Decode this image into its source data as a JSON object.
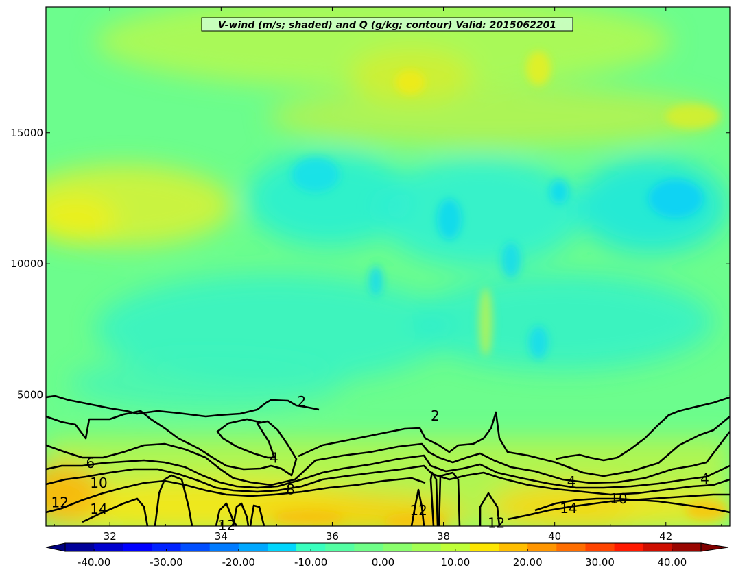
{
  "chart_data": {
    "type": "heatmap",
    "title": "V-wind (m/s; shaded) and Q (g/kg; contour) Valid: 2015062201",
    "x_ticks": [
      32,
      34,
      36,
      38,
      40,
      42
    ],
    "x_range": [
      30.85,
      43.15
    ],
    "y_ticks": [
      5000,
      10000,
      15000
    ],
    "y_range": [
      0,
      19800
    ],
    "shaded_variable": "V-wind (m/s)",
    "contour_variable": "Q (g/kg)",
    "colorbar": {
      "ticks": [
        "-40.00",
        "-30.00",
        "-20.00",
        "-10.00",
        "0.00",
        "10.00",
        "20.00",
        "30.00",
        "40.00"
      ],
      "range": [
        -44,
        44
      ],
      "levels": 22,
      "extend": "both"
    },
    "contour_labels": [
      {
        "text": "2",
        "x": 35.45,
        "y": 4750
      },
      {
        "text": "2",
        "x": 37.85,
        "y": 4200
      },
      {
        "text": "4",
        "x": 34.95,
        "y": 2600
      },
      {
        "text": "4",
        "x": 40.3,
        "y": 1700
      },
      {
        "text": "4",
        "x": 42.7,
        "y": 1800
      },
      {
        "text": "6",
        "x": 31.65,
        "y": 2400
      },
      {
        "text": "8",
        "x": 35.25,
        "y": 1400
      },
      {
        "text": "10",
        "x": 31.8,
        "y": 1650
      },
      {
        "text": "10",
        "x": 41.15,
        "y": 1050
      },
      {
        "text": "12",
        "x": 31.1,
        "y": 900
      },
      {
        "text": "12",
        "x": 34.1,
        "y": 20
      },
      {
        "text": "12",
        "x": 37.55,
        "y": 600
      },
      {
        "text": "12",
        "x": 38.95,
        "y": 120
      },
      {
        "text": "14",
        "x": 31.8,
        "y": 650
      },
      {
        "text": "14",
        "x": 40.25,
        "y": 680
      }
    ],
    "colors": {
      "background": "#6cfd8d",
      "frame": "#000000",
      "contour": "#000000",
      "title_box": "#ccffcc"
    }
  }
}
